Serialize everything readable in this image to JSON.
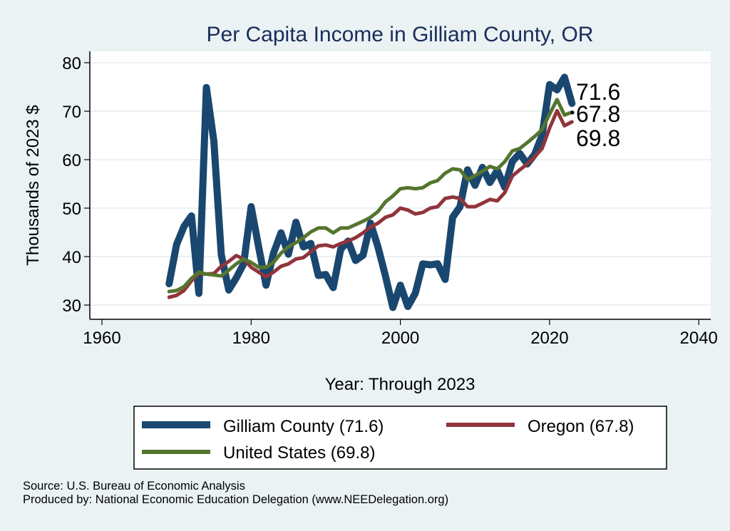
{
  "chart_data": {
    "type": "line",
    "title": "Per Capita Income in Gilliam County, OR",
    "xlabel": "Year: Through 2023",
    "ylabel": "Thousands of 2023 $",
    "xlim": [
      1958.4,
      2041.6
    ],
    "ylim": [
      26.9,
      83.6
    ],
    "xticks": [
      1960,
      1980,
      2000,
      2020,
      2040
    ],
    "yticks": [
      30,
      40,
      50,
      60,
      70,
      80
    ],
    "grid": true,
    "legend_position": "bottom",
    "x": [
      1969,
      1970,
      1971,
      1972,
      1973,
      1974,
      1975,
      1976,
      1977,
      1978,
      1979,
      1980,
      1981,
      1982,
      1983,
      1984,
      1985,
      1986,
      1987,
      1988,
      1989,
      1990,
      1991,
      1992,
      1993,
      1994,
      1995,
      1996,
      1997,
      1998,
      1999,
      2000,
      2001,
      2002,
      2003,
      2004,
      2005,
      2006,
      2007,
      2008,
      2009,
      2010,
      2011,
      2012,
      2013,
      2014,
      2015,
      2016,
      2017,
      2018,
      2019,
      2020,
      2021,
      2022,
      2023
    ],
    "series": [
      {
        "name": "Gilliam County (71.6)",
        "color": "#1a476f",
        "end_label": "71.6",
        "values": [
          34.4,
          42.5,
          46.2,
          48.4,
          32.4,
          74.9,
          63.8,
          40.4,
          33.1,
          35.6,
          38.5,
          50.3,
          42.0,
          34.1,
          40.7,
          44.9,
          40.5,
          47.1,
          42.0,
          42.7,
          36.1,
          36.3,
          33.6,
          41.5,
          43.2,
          39.2,
          40.3,
          46.9,
          42.0,
          36.0,
          29.5,
          34.1,
          29.7,
          32.4,
          38.5,
          38.3,
          38.5,
          35.3,
          48.1,
          50.3,
          57.9,
          54.7,
          58.4,
          55.3,
          57.8,
          54.3,
          59.6,
          61.3,
          59.1,
          61.1,
          65.0,
          75.5,
          74.4,
          77.0,
          71.6
        ]
      },
      {
        "name": "Oregon (67.8)",
        "color": "#90353b",
        "end_label": "67.8",
        "values": [
          31.6,
          32.0,
          33.0,
          35.0,
          36.5,
          36.4,
          36.5,
          38.0,
          39.0,
          40.2,
          39.5,
          37.8,
          36.8,
          35.8,
          36.8,
          38.0,
          38.5,
          39.5,
          39.8,
          41.0,
          42.2,
          42.4,
          42.0,
          42.7,
          43.2,
          43.9,
          44.9,
          46.1,
          46.9,
          48.1,
          48.6,
          50.0,
          49.6,
          48.8,
          49.1,
          50.0,
          50.3,
          52.0,
          52.3,
          52.0,
          50.3,
          50.3,
          51.0,
          51.8,
          51.5,
          53.2,
          56.6,
          57.9,
          59.1,
          60.6,
          62.3,
          66.5,
          70.1,
          67.0,
          67.8
        ]
      },
      {
        "name": "United States (69.8)",
        "color": "#55752f",
        "end_label": "69.8",
        "values": [
          32.8,
          33.0,
          33.8,
          35.5,
          36.8,
          36.4,
          36.2,
          36.0,
          37.2,
          38.5,
          39.5,
          38.8,
          37.8,
          37.8,
          38.8,
          40.7,
          42.0,
          42.9,
          43.9,
          45.1,
          45.9,
          45.9,
          44.9,
          45.9,
          45.9,
          46.6,
          47.3,
          48.1,
          49.3,
          51.3,
          52.5,
          54.0,
          54.2,
          54.0,
          54.2,
          55.2,
          55.7,
          57.2,
          58.1,
          57.9,
          55.9,
          56.7,
          57.6,
          58.6,
          58.1,
          59.6,
          61.8,
          62.3,
          63.5,
          64.8,
          66.2,
          69.4,
          72.4,
          69.2,
          69.8
        ]
      }
    ]
  },
  "footer": {
    "source": "Source: U.S. Bureau of Economic Analysis",
    "produced_by": "Produced by: National Economic Education Delegation (www.NEEDelegation.org)"
  }
}
